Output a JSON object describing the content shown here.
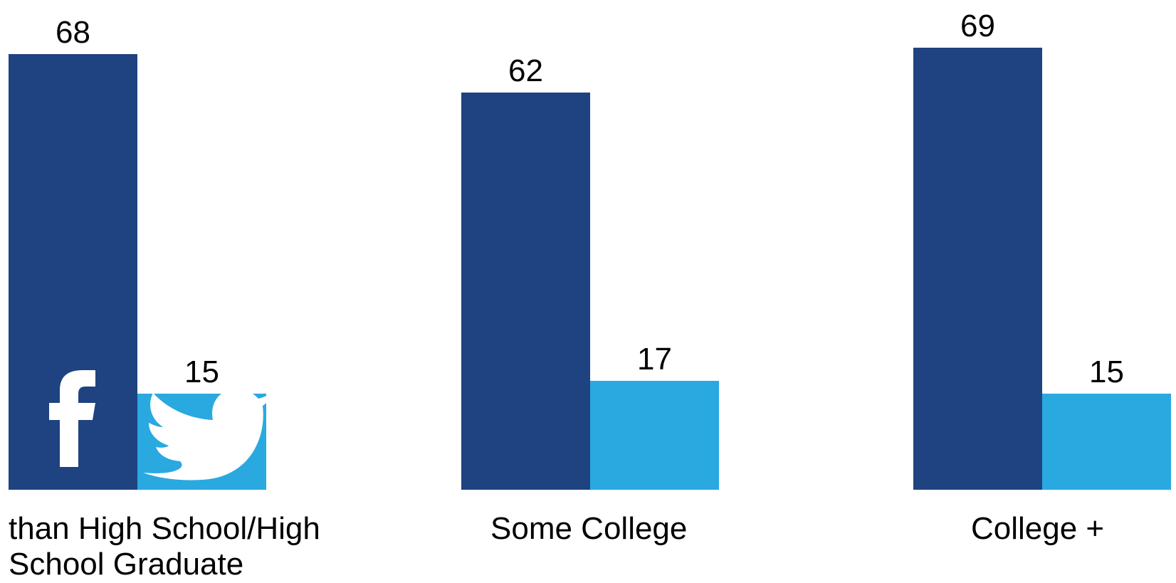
{
  "chart_data": {
    "type": "bar",
    "categories": [
      "than High School/High School Graduate",
      "Some College",
      "College +"
    ],
    "category_lines": [
      [
        "than High School/High",
        "School Graduate"
      ],
      [
        "Some College"
      ],
      [
        "College +"
      ]
    ],
    "series": [
      {
        "values": [
          68,
          62,
          69
        ],
        "color": "#1f4380",
        "icon": "facebook-icon"
      },
      {
        "values": [
          15,
          17,
          15
        ],
        "color": "#2aa9e0",
        "icon": "twitter-bird-icon"
      }
    ],
    "ylim": [
      0,
      75
    ],
    "grid": false,
    "legend": "icons-in-first-group-bars"
  }
}
